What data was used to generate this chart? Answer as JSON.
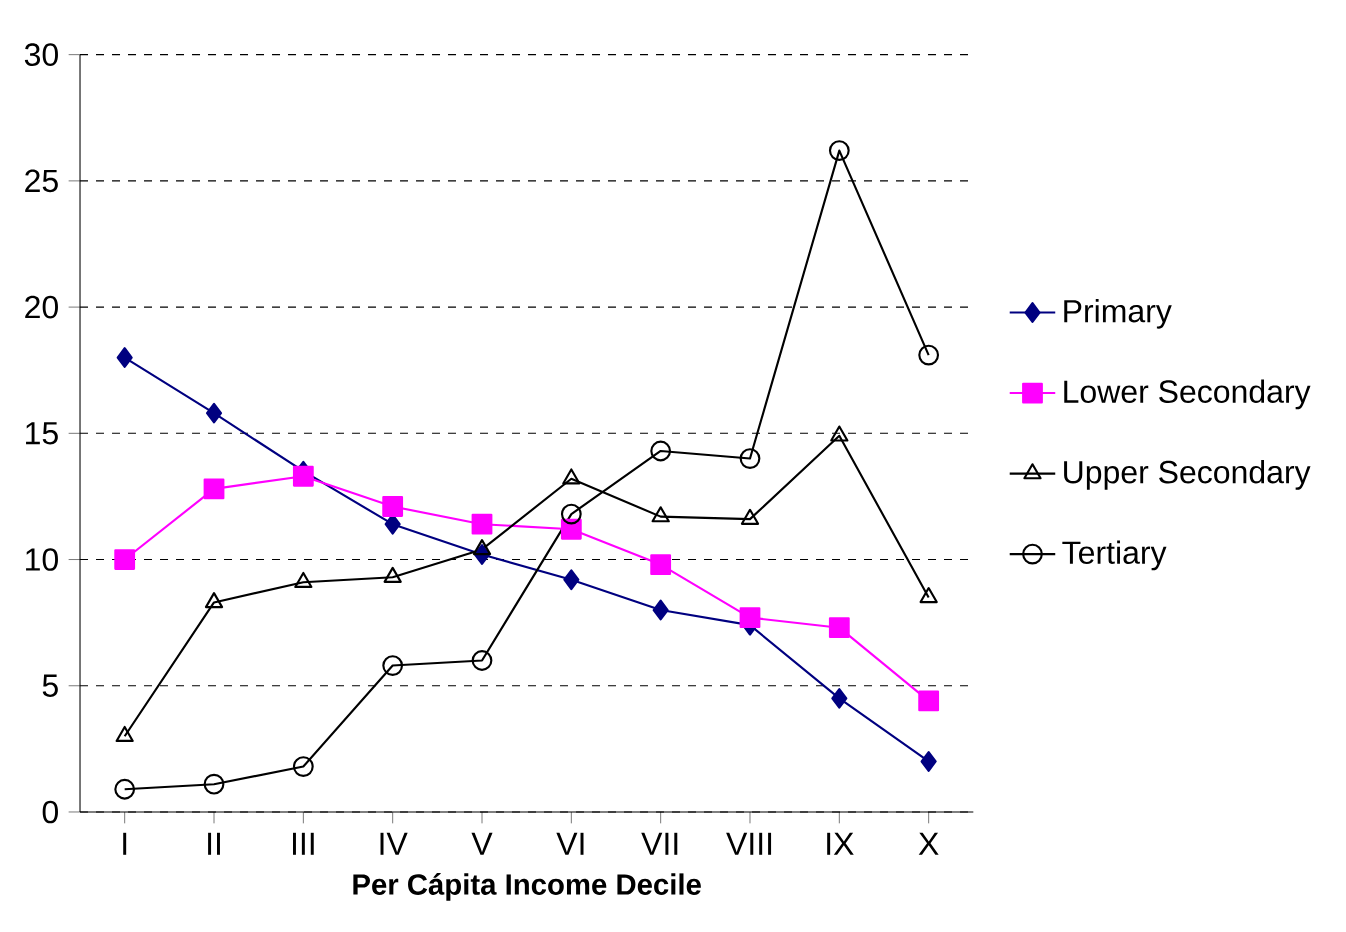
{
  "chart_data": {
    "type": "line",
    "xlabel": "Per Cápita Income Decile",
    "categories": [
      "I",
      "II",
      "III",
      "IV",
      "V",
      "VI",
      "VII",
      "VIII",
      "IX",
      "X"
    ],
    "ylim": [
      0,
      30
    ],
    "yticks": [
      0,
      5,
      10,
      15,
      20,
      25,
      30
    ],
    "grid": "y",
    "legend": "right",
    "series": [
      {
        "name": "Primary",
        "color": "#000080",
        "marker": "diamond",
        "values": [
          18,
          15.8,
          13.5,
          11.4,
          10.2,
          9.2,
          8.0,
          7.4,
          4.5,
          2.0
        ]
      },
      {
        "name": "Lower Secondary",
        "color": "#ff00ff",
        "marker": "square",
        "values": [
          10.0,
          12.8,
          13.3,
          12.1,
          11.4,
          11.2,
          9.8,
          7.7,
          7.3,
          4.4
        ]
      },
      {
        "name": "Upper Secondary",
        "color": "#000000",
        "marker": "triangle",
        "values": [
          3.0,
          8.3,
          9.1,
          9.3,
          10.4,
          13.2,
          11.7,
          11.6,
          14.9,
          8.5
        ]
      },
      {
        "name": "Tertiary",
        "color": "#000000",
        "marker": "circle",
        "values": [
          0.9,
          1.1,
          1.8,
          5.8,
          6.0,
          11.8,
          14.3,
          14.0,
          26.2,
          18.1
        ]
      }
    ]
  }
}
